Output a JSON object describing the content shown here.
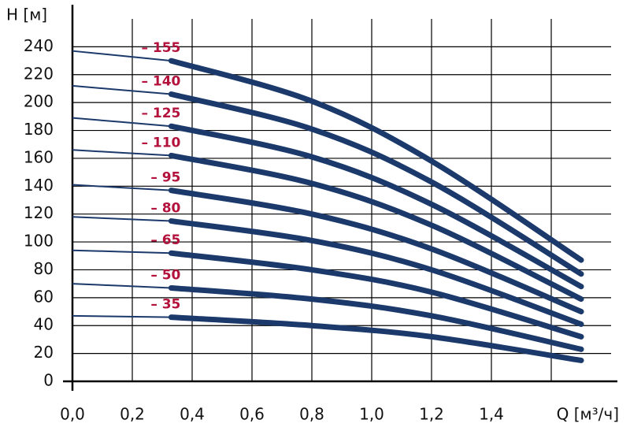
{
  "chart_data": {
    "type": "line",
    "y_label": "H [м]",
    "x_label": "Q [м³/ч]",
    "x": [
      0,
      0.33,
      0.8,
      1.2,
      1.7
    ],
    "line_color": "#1b3a6b",
    "label_color": "#b3123c",
    "grid": true,
    "series": [
      {
        "name": "– 155",
        "values": [
          237,
          230,
          201,
          158,
          87
        ]
      },
      {
        "name": "– 140",
        "values": [
          212,
          206,
          181,
          143,
          77
        ]
      },
      {
        "name": "– 125",
        "values": [
          189,
          183,
          161,
          127,
          68
        ]
      },
      {
        "name": "– 110",
        "values": [
          166,
          162,
          142,
          112,
          59
        ]
      },
      {
        "name": "– 95",
        "values": [
          141,
          137,
          120,
          95,
          50
        ]
      },
      {
        "name": "– 80",
        "values": [
          118,
          115,
          101,
          80,
          41
        ]
      },
      {
        "name": "– 65",
        "values": [
          94,
          92,
          80,
          64,
          32
        ]
      },
      {
        "name": "– 50",
        "values": [
          70,
          67,
          59,
          47,
          23
        ]
      },
      {
        "name": "– 35",
        "values": [
          47,
          46,
          40,
          32,
          15
        ]
      }
    ],
    "xlim": [
      0,
      1.8
    ],
    "xticks": [
      {
        "value": 0,
        "label": "0,0"
      },
      {
        "value": 0.2,
        "label": "0,2"
      },
      {
        "value": 0.4,
        "label": "0,4"
      },
      {
        "value": 0.6,
        "label": "0,6"
      },
      {
        "value": 0.8,
        "label": "0,8"
      },
      {
        "value": 1.0,
        "label": "1,0"
      },
      {
        "value": 1.2,
        "label": "1,2"
      },
      {
        "value": 1.4,
        "label": "1,4"
      },
      {
        "value": 1.6,
        "label": null
      }
    ],
    "ylim": [
      0,
      260
    ],
    "yticks": [
      0,
      20,
      40,
      60,
      80,
      100,
      120,
      140,
      160,
      180,
      200,
      220,
      240
    ]
  }
}
